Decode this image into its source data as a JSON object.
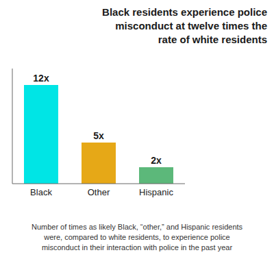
{
  "chart_data": {
    "type": "bar",
    "title": "Black residents experience police\nmisconduct at twelve times the\nrate of white residents",
    "footnote": "Number of times as likely Black, “other,” and Hispanic residents\nwere, compared to white residents, to experience police\nmisconduct in their interaction with police in the past year",
    "categories": [
      "Black",
      "Other",
      "Hispanic"
    ],
    "values": [
      12,
      5,
      2
    ],
    "value_labels": [
      "12x",
      "5x",
      "2x"
    ],
    "colors": [
      "#00e5e5",
      "#e6a817",
      "#5cb87a"
    ],
    "ylim": [
      0,
      14
    ],
    "data_labels": true,
    "tick_labels": "x",
    "grid": false
  }
}
